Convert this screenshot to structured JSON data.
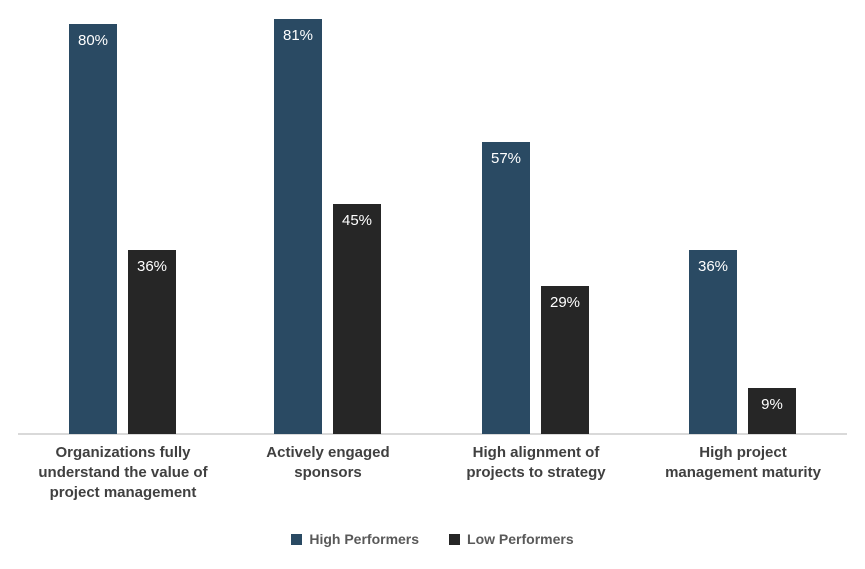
{
  "chart_data": {
    "type": "bar",
    "title": "",
    "categories": [
      "Organizations fully\nunderstand the value of\nproject management",
      "Actively engaged\nsponsors",
      "High alignment of\nprojects to strategy",
      "High project\nmanagement maturity"
    ],
    "series": [
      {
        "name": "High Performers",
        "color": "#2a4a63",
        "values": [
          80,
          81,
          57,
          36
        ]
      },
      {
        "name": "Low Performers",
        "color": "#262626",
        "values": [
          36,
          45,
          29,
          9
        ]
      }
    ],
    "data_labels": [
      [
        "80%",
        "81%",
        "57%",
        "36%"
      ],
      [
        "36%",
        "45%",
        "29%",
        "9%"
      ]
    ],
    "value_suffix": "%",
    "xlabel": "",
    "ylabel": "",
    "ylim": [
      0,
      85
    ],
    "grid": false,
    "y_axis_visible": false,
    "legend_position": "bottom",
    "colors": {
      "axis_line": "#d9d9d9",
      "category_label_text": "#404040",
      "legend_text": "#595959",
      "bar_value_text": "#ffffff",
      "background": "#ffffff"
    }
  }
}
